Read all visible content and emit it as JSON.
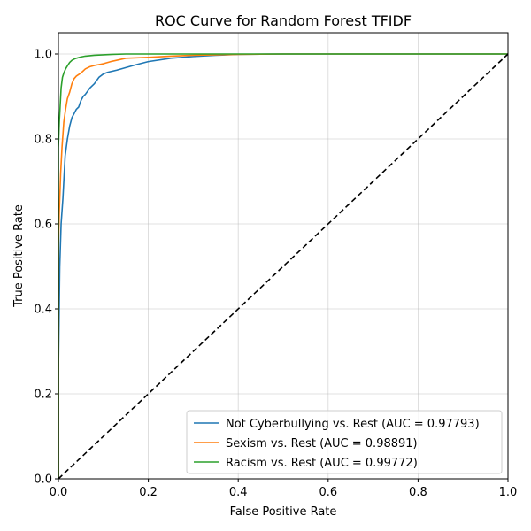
{
  "chart_data": {
    "type": "line",
    "title": "ROC Curve for Random Forest TFIDF",
    "xlabel": "False Positive Rate",
    "ylabel": "True Positive Rate",
    "xlim": [
      0.0,
      1.0
    ],
    "ylim": [
      0.0,
      1.05
    ],
    "xticks": [
      "0.0",
      "0.2",
      "0.4",
      "0.6",
      "0.8",
      "1.0"
    ],
    "yticks": [
      "0.0",
      "0.2",
      "0.4",
      "0.6",
      "0.8",
      "1.0"
    ],
    "grid": true,
    "legend_position": "lower-right",
    "series": [
      {
        "name": "Not Cyberbullying vs. Rest (AUC = 0.97793)",
        "color": "#1f77b4",
        "x": [
          0.0,
          0.0,
          0.003,
          0.006,
          0.01,
          0.015,
          0.02,
          0.025,
          0.03,
          0.035,
          0.04,
          0.045,
          0.05,
          0.055,
          0.06,
          0.07,
          0.08,
          0.09,
          0.1,
          0.11,
          0.13,
          0.15,
          0.17,
          0.2,
          0.25,
          0.3,
          0.35,
          0.4,
          0.5,
          0.6,
          0.8,
          1.0
        ],
        "y": [
          0.0,
          0.25,
          0.5,
          0.6,
          0.66,
          0.76,
          0.8,
          0.83,
          0.85,
          0.86,
          0.87,
          0.875,
          0.89,
          0.9,
          0.905,
          0.92,
          0.93,
          0.945,
          0.953,
          0.957,
          0.962,
          0.968,
          0.974,
          0.982,
          0.99,
          0.994,
          0.997,
          0.999,
          1.0,
          1.0,
          1.0,
          1.0
        ]
      },
      {
        "name": "Sexism vs. Rest (AUC = 0.98891)",
        "color": "#ff7f0e",
        "x": [
          0.0,
          0.0,
          0.002,
          0.005,
          0.008,
          0.012,
          0.016,
          0.02,
          0.025,
          0.03,
          0.035,
          0.04,
          0.05,
          0.06,
          0.07,
          0.08,
          0.09,
          0.1,
          0.12,
          0.15,
          0.2,
          0.25,
          0.3,
          0.4,
          0.5,
          0.6,
          0.8,
          1.0
        ],
        "y": [
          0.0,
          0.55,
          0.63,
          0.72,
          0.78,
          0.84,
          0.87,
          0.895,
          0.91,
          0.93,
          0.942,
          0.948,
          0.955,
          0.965,
          0.97,
          0.973,
          0.975,
          0.977,
          0.983,
          0.99,
          0.992,
          0.995,
          0.997,
          0.999,
          1.0,
          1.0,
          1.0,
          1.0
        ]
      },
      {
        "name": "Racism vs. Rest (AUC = 0.99772)",
        "color": "#2ca02c",
        "x": [
          0.0,
          0.0,
          0.002,
          0.004,
          0.006,
          0.009,
          0.012,
          0.016,
          0.02,
          0.025,
          0.03,
          0.035,
          0.04,
          0.05,
          0.06,
          0.08,
          0.1,
          0.12,
          0.15,
          0.2,
          0.3,
          0.5,
          1.0
        ],
        "y": [
          0.0,
          0.78,
          0.84,
          0.88,
          0.92,
          0.945,
          0.955,
          0.965,
          0.972,
          0.98,
          0.985,
          0.988,
          0.99,
          0.993,
          0.995,
          0.997,
          0.998,
          0.999,
          1.0,
          1.0,
          1.0,
          1.0,
          1.0
        ]
      }
    ],
    "reference_line": {
      "style": "dashed",
      "color": "#000000",
      "x": [
        0.0,
        1.0
      ],
      "y": [
        0.0,
        1.0
      ]
    }
  }
}
